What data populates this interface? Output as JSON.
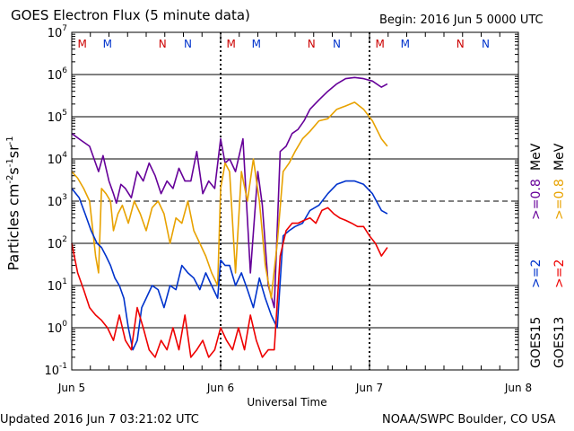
{
  "header": {
    "title": "GOES Electron Flux (5 minute data)",
    "begin": "Begin: 2016 Jun 5 0000 UTC"
  },
  "footer": {
    "updated": "Updated 2016 Jun  7 03:21:02 UTC",
    "credit": "NOAA/SWPC Boulder, CO USA"
  },
  "legend": {
    "goes15": "GOES15",
    "goes13": "GOES13",
    "e2_15": ">=2",
    "e2_13": ">=2",
    "e08_15": ">=0.8",
    "e08_13": ">=0.8",
    "unit": "MeV"
  },
  "chart_data": {
    "type": "line",
    "title": "GOES Electron Flux (5 minute data)",
    "xlabel": "Universal Time",
    "ylabel": "Particles cm-2 s-1 sr-1",
    "yscale": "log",
    "ylim": [
      0.1,
      10000000
    ],
    "xlim": [
      0,
      3
    ],
    "x_units": "days since 2016 Jun 5 0000 UTC",
    "x_ticks": [
      {
        "value": 0,
        "label": "Jun 5"
      },
      {
        "value": 1,
        "label": "Jun 6"
      },
      {
        "value": 2,
        "label": "Jun 7"
      },
      {
        "value": 3,
        "label": "Jun 8"
      }
    ],
    "y_ticks": [
      {
        "value": 0.1,
        "label": "10",
        "exp": "-1"
      },
      {
        "value": 1,
        "label": "10",
        "exp": "0"
      },
      {
        "value": 10,
        "label": "10",
        "exp": "1"
      },
      {
        "value": 100,
        "label": "10",
        "exp": "2"
      },
      {
        "value": 1000,
        "label": "10",
        "exp": "3"
      },
      {
        "value": 10000,
        "label": "10",
        "exp": "4"
      },
      {
        "value": 100000,
        "label": "10",
        "exp": "5"
      },
      {
        "value": 1000000,
        "label": "10",
        "exp": "6"
      },
      {
        "value": 10000000,
        "label": "10",
        "exp": "7"
      }
    ],
    "gridlines": [
      1,
      10,
      100,
      10000,
      100000,
      1000000
    ],
    "threshold": 1000,
    "day_boundaries": [
      1,
      2
    ],
    "markers": [
      {
        "label": "M",
        "x": 0.07,
        "color": "#cc0000"
      },
      {
        "label": "M",
        "x": 0.24,
        "color": "#0033cc"
      },
      {
        "label": "N",
        "x": 0.61,
        "color": "#cc0000"
      },
      {
        "label": "N",
        "x": 0.78,
        "color": "#0033cc"
      },
      {
        "label": "M",
        "x": 1.07,
        "color": "#cc0000"
      },
      {
        "label": "M",
        "x": 1.24,
        "color": "#0033cc"
      },
      {
        "label": "N",
        "x": 1.61,
        "color": "#cc0000"
      },
      {
        "label": "N",
        "x": 1.78,
        "color": "#0033cc"
      },
      {
        "label": "M",
        "x": 2.07,
        "color": "#cc0000"
      },
      {
        "label": "M",
        "x": 2.24,
        "color": "#0033cc"
      },
      {
        "label": "N",
        "x": 2.61,
        "color": "#cc0000"
      },
      {
        "label": "N",
        "x": 2.78,
        "color": "#0033cc"
      }
    ],
    "series": [
      {
        "name": "GOES15 >=0.8 MeV",
        "color": "#660099",
        "x": [
          0,
          0.06,
          0.12,
          0.18,
          0.21,
          0.25,
          0.28,
          0.3,
          0.33,
          0.36,
          0.4,
          0.44,
          0.48,
          0.52,
          0.56,
          0.6,
          0.64,
          0.68,
          0.72,
          0.76,
          0.8,
          0.84,
          0.88,
          0.92,
          0.96,
          1.0,
          1.03,
          1.06,
          1.1,
          1.15,
          1.2,
          1.25,
          1.28,
          1.32,
          1.36,
          1.4,
          1.44,
          1.48,
          1.52,
          1.56,
          1.6,
          1.66,
          1.72,
          1.78,
          1.84,
          1.9,
          1.96,
          2.02,
          2.08,
          2.12
        ],
        "y": [
          40000,
          28000,
          20000,
          5000,
          12000,
          3000,
          1500,
          900,
          2500,
          2000,
          1200,
          5000,
          3000,
          8000,
          4000,
          1500,
          3000,
          2000,
          6000,
          3000,
          3000,
          15000,
          1500,
          3000,
          2000,
          30000,
          8000,
          10000,
          5000,
          30000,
          20,
          5000,
          800,
          10,
          3,
          15000,
          20000,
          40000,
          50000,
          80000,
          150000,
          250000,
          400000,
          600000,
          800000,
          850000,
          800000,
          700000,
          500000,
          600000
        ]
      },
      {
        "name": "GOES13 >=0.8 MeV",
        "color": "#e8a200",
        "x": [
          0,
          0.04,
          0.08,
          0.12,
          0.16,
          0.18,
          0.2,
          0.23,
          0.26,
          0.28,
          0.31,
          0.34,
          0.38,
          0.42,
          0.46,
          0.5,
          0.54,
          0.58,
          0.62,
          0.66,
          0.7,
          0.74,
          0.78,
          0.82,
          0.86,
          0.9,
          0.94,
          0.98,
          1.0,
          1.03,
          1.06,
          1.1,
          1.14,
          1.18,
          1.22,
          1.26,
          1.3,
          1.34,
          1.38,
          1.42,
          1.46,
          1.5,
          1.55,
          1.6,
          1.66,
          1.72,
          1.78,
          1.84,
          1.9,
          1.96,
          2.02,
          2.08,
          2.12
        ],
        "y": [
          5000,
          3500,
          2000,
          1000,
          50,
          20,
          2000,
          1500,
          1000,
          200,
          500,
          800,
          300,
          1000,
          500,
          200,
          700,
          1000,
          500,
          100,
          400,
          300,
          1000,
          200,
          100,
          50,
          20,
          10,
          2000,
          8000,
          5000,
          20,
          5000,
          1000,
          10000,
          1000,
          30,
          5,
          100,
          5000,
          8000,
          15000,
          30000,
          45000,
          80000,
          90000,
          150000,
          180000,
          220000,
          150000,
          80000,
          30000,
          20000
        ]
      },
      {
        "name": "GOES15 >=2 MeV",
        "color": "#0033cc",
        "x": [
          0,
          0.05,
          0.09,
          0.13,
          0.17,
          0.2,
          0.23,
          0.26,
          0.29,
          0.32,
          0.35,
          0.38,
          0.41,
          0.44,
          0.47,
          0.5,
          0.54,
          0.58,
          0.62,
          0.66,
          0.7,
          0.74,
          0.78,
          0.82,
          0.86,
          0.9,
          0.94,
          0.98,
          1.0,
          1.03,
          1.06,
          1.1,
          1.14,
          1.18,
          1.22,
          1.26,
          1.3,
          1.34,
          1.38,
          1.42,
          1.46,
          1.5,
          1.55,
          1.6,
          1.66,
          1.72,
          1.78,
          1.84,
          1.9,
          1.96,
          2.02,
          2.08,
          2.12
        ],
        "y": [
          2000,
          1200,
          500,
          200,
          100,
          80,
          50,
          30,
          15,
          10,
          5,
          1,
          0.3,
          0.5,
          3,
          5,
          10,
          8,
          3,
          10,
          8,
          30,
          20,
          15,
          8,
          20,
          10,
          5,
          40,
          30,
          30,
          10,
          20,
          8,
          3,
          15,
          5,
          2,
          1,
          150,
          200,
          250,
          300,
          600,
          800,
          1500,
          2500,
          3000,
          3000,
          2500,
          1500,
          600,
          500
        ]
      },
      {
        "name": "GOES13 >=2 MeV",
        "color": "#ee0000",
        "x": [
          0,
          0.04,
          0.08,
          0.12,
          0.16,
          0.2,
          0.24,
          0.28,
          0.32,
          0.36,
          0.4,
          0.44,
          0.48,
          0.52,
          0.56,
          0.6,
          0.64,
          0.68,
          0.72,
          0.76,
          0.8,
          0.84,
          0.88,
          0.92,
          0.96,
          1.0,
          1.04,
          1.08,
          1.12,
          1.16,
          1.2,
          1.24,
          1.28,
          1.32,
          1.36,
          1.4,
          1.44,
          1.48,
          1.52,
          1.56,
          1.6,
          1.64,
          1.68,
          1.72,
          1.76,
          1.8,
          1.84,
          1.88,
          1.92,
          1.96,
          2.0,
          2.04,
          2.08,
          2.12
        ],
        "y": [
          100,
          20,
          8,
          3,
          2,
          1.5,
          1,
          0.5,
          2,
          0.5,
          0.3,
          3,
          1,
          0.3,
          0.2,
          0.5,
          0.3,
          1,
          0.3,
          2,
          0.2,
          0.3,
          0.5,
          0.2,
          0.3,
          1,
          0.5,
          0.3,
          1,
          0.3,
          2,
          0.5,
          0.2,
          0.3,
          0.3,
          50,
          200,
          300,
          300,
          350,
          400,
          300,
          600,
          700,
          500,
          400,
          350,
          300,
          250,
          250,
          150,
          100,
          50,
          80
        ]
      }
    ]
  }
}
